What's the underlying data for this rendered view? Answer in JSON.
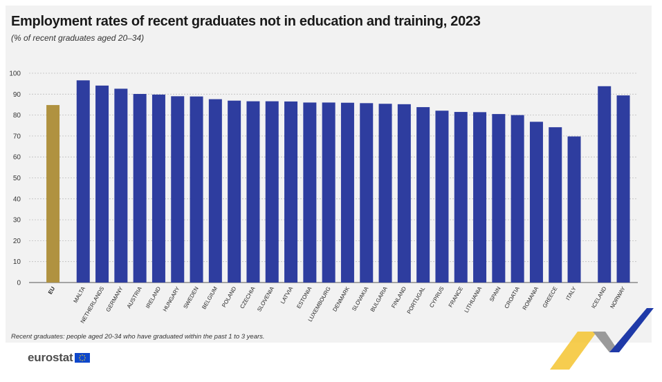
{
  "title": "Employment rates of recent graduates not in education and training, 2023",
  "subtitle": "(% of recent graduates aged 20–34)",
  "footnote": "Recent graduates: people aged 20-34 who have graduated within the past 1 to 3 years.",
  "logo": "eurostat",
  "colors": {
    "eu": "#b09240",
    "country": "#2e3d9f",
    "grid": "#bdbdbd",
    "axis": "#555555"
  },
  "chart_data": {
    "type": "bar",
    "ylim": [
      0,
      100
    ],
    "yticks": [
      0,
      10,
      20,
      30,
      40,
      50,
      60,
      70,
      80,
      90,
      100
    ],
    "grid": true,
    "groups": [
      {
        "categories": [
          "EU"
        ],
        "values": [
          84.8
        ],
        "color": "eu"
      },
      {
        "categories": [
          "MALTA",
          "NETHERLANDS",
          "GERMANY",
          "AUSTRIA",
          "IRELAND",
          "HUNGARY",
          "SWEDEN",
          "BELGIUM",
          "POLAND",
          "CZECHIA",
          "SLOVENIA",
          "LATVIA",
          "ESTONIA",
          "LUXEMBOURG",
          "DENMARK",
          "SLOVAKIA",
          "BULGARIA",
          "FINLAND",
          "PORTUGAL",
          "CYPRUS",
          "FRANCE",
          "LITHUANIA",
          "SPAIN",
          "CROATIA",
          "ROMANIA",
          "GREECE",
          "ITALY"
        ],
        "values": [
          96.6,
          94.1,
          92.6,
          90.1,
          89.8,
          89.0,
          88.9,
          87.6,
          86.9,
          86.6,
          86.6,
          86.5,
          86.0,
          86.0,
          85.9,
          85.7,
          85.4,
          85.2,
          83.8,
          82.1,
          81.5,
          81.4,
          80.5,
          80.0,
          76.8,
          74.2,
          69.8
        ],
        "color": "country"
      },
      {
        "categories": [
          "ICELAND",
          "NORWAY"
        ],
        "values": [
          93.8,
          89.4
        ],
        "color": "country"
      }
    ]
  }
}
